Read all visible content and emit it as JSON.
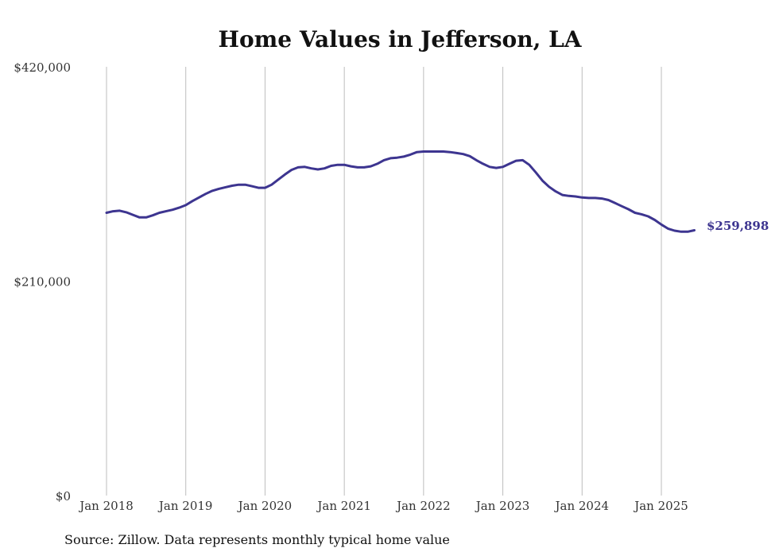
{
  "title": "Home Values in Jefferson, LA",
  "source": "Source: Zillow. Data represents monthly typical home value",
  "chart_data": {
    "type": "line",
    "title": "Home Values in Jefferson, LA",
    "xlabel": "",
    "ylabel": "",
    "ylim": [
      0,
      420000
    ],
    "y_ticks": [
      "$0",
      "$210,000",
      "$420,000"
    ],
    "y_tick_values": [
      0,
      210000,
      420000
    ],
    "x_ticks": [
      "Jan 2018",
      "Jan 2019",
      "Jan 2020",
      "Jan 2021",
      "Jan 2022",
      "Jan 2023",
      "Jan 2024",
      "Jan 2025"
    ],
    "x_tick_dates": [
      "2018-01",
      "2019-01",
      "2020-01",
      "2021-01",
      "2022-01",
      "2023-01",
      "2024-01",
      "2025-01"
    ],
    "grid": "vertical",
    "line_color": "#3d3590",
    "end_label": "$259,898",
    "series": [
      {
        "points": [
          [
            "2018-01",
            277000
          ],
          [
            "2018-02",
            278500
          ],
          [
            "2018-03",
            279000
          ],
          [
            "2018-04",
            277500
          ],
          [
            "2018-05",
            275000
          ],
          [
            "2018-06",
            272500
          ],
          [
            "2018-07",
            272500
          ],
          [
            "2018-08",
            274500
          ],
          [
            "2018-09",
            277000
          ],
          [
            "2018-10",
            278500
          ],
          [
            "2018-11",
            280000
          ],
          [
            "2018-12",
            282000
          ],
          [
            "2019-01",
            284500
          ],
          [
            "2019-02",
            288500
          ],
          [
            "2019-03",
            292000
          ],
          [
            "2019-04",
            295500
          ],
          [
            "2019-05",
            298500
          ],
          [
            "2019-06",
            300500
          ],
          [
            "2019-07",
            302000
          ],
          [
            "2019-08",
            303500
          ],
          [
            "2019-09",
            304500
          ],
          [
            "2019-10",
            304500
          ],
          [
            "2019-11",
            303000
          ],
          [
            "2019-12",
            301500
          ],
          [
            "2020-01",
            301500
          ],
          [
            "2020-02",
            304500
          ],
          [
            "2020-03",
            309500
          ],
          [
            "2020-04",
            314500
          ],
          [
            "2020-05",
            319000
          ],
          [
            "2020-06",
            321500
          ],
          [
            "2020-07",
            322000
          ],
          [
            "2020-08",
            320500
          ],
          [
            "2020-09",
            319500
          ],
          [
            "2020-10",
            320500
          ],
          [
            "2020-11",
            323000
          ],
          [
            "2020-12",
            324000
          ],
          [
            "2021-01",
            324000
          ],
          [
            "2021-02",
            322500
          ],
          [
            "2021-03",
            321500
          ],
          [
            "2021-04",
            321500
          ],
          [
            "2021-05",
            322500
          ],
          [
            "2021-06",
            325000
          ],
          [
            "2021-07",
            328500
          ],
          [
            "2021-08",
            330500
          ],
          [
            "2021-09",
            331000
          ],
          [
            "2021-10",
            332000
          ],
          [
            "2021-11",
            334000
          ],
          [
            "2021-12",
            336500
          ],
          [
            "2022-01",
            337000
          ],
          [
            "2022-02",
            337000
          ],
          [
            "2022-03",
            337000
          ],
          [
            "2022-04",
            337000
          ],
          [
            "2022-05",
            336500
          ],
          [
            "2022-06",
            335500
          ],
          [
            "2022-07",
            334500
          ],
          [
            "2022-08",
            332500
          ],
          [
            "2022-09",
            328500
          ],
          [
            "2022-10",
            325000
          ],
          [
            "2022-11",
            322000
          ],
          [
            "2022-12",
            321000
          ],
          [
            "2023-01",
            322000
          ],
          [
            "2023-02",
            325000
          ],
          [
            "2023-03",
            328000
          ],
          [
            "2023-04",
            328500
          ],
          [
            "2023-05",
            324000
          ],
          [
            "2023-06",
            316500
          ],
          [
            "2023-07",
            308500
          ],
          [
            "2023-08",
            302500
          ],
          [
            "2023-09",
            298000
          ],
          [
            "2023-10",
            294500
          ],
          [
            "2023-11",
            293500
          ],
          [
            "2023-12",
            293000
          ],
          [
            "2024-01",
            292000
          ],
          [
            "2024-02",
            291500
          ],
          [
            "2024-03",
            291500
          ],
          [
            "2024-04",
            291000
          ],
          [
            "2024-05",
            289500
          ],
          [
            "2024-06",
            286500
          ],
          [
            "2024-07",
            283500
          ],
          [
            "2024-08",
            280500
          ],
          [
            "2024-09",
            277000
          ],
          [
            "2024-10",
            275500
          ],
          [
            "2024-11",
            273500
          ],
          [
            "2024-12",
            270000
          ],
          [
            "2025-01",
            265500
          ],
          [
            "2025-02",
            261500
          ],
          [
            "2025-03",
            259500
          ],
          [
            "2025-04",
            258500
          ],
          [
            "2025-05",
            258500
          ],
          [
            "2025-06",
            259898
          ]
        ]
      }
    ]
  }
}
